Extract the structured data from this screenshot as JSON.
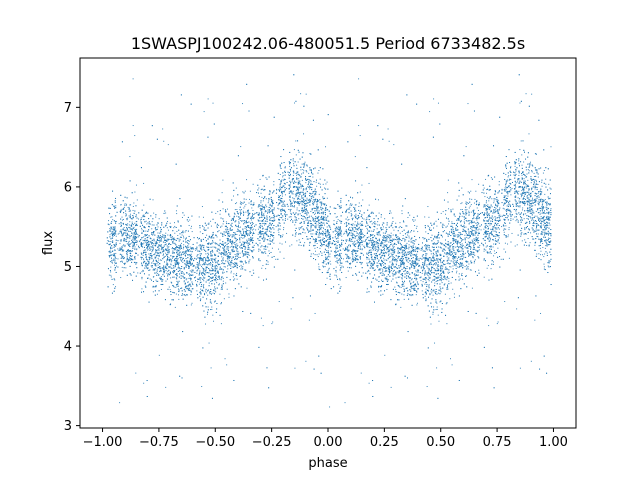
{
  "chart_data": {
    "type": "scatter",
    "title": "1SWASPJ100242.06-480051.5 Period 6733482.5s",
    "xlabel": "phase",
    "ylabel": "flux",
    "xlim": [
      -1.1,
      1.1
    ],
    "ylim": [
      2.97,
      7.62
    ],
    "xticks": [
      -1.0,
      -0.75,
      -0.5,
      -0.25,
      0.0,
      0.25,
      0.5,
      0.75,
      1.0
    ],
    "xtick_labels": [
      "−1.00",
      "−0.75",
      "−0.50",
      "−0.25",
      "0.00",
      "0.25",
      "0.50",
      "0.75",
      "1.00"
    ],
    "yticks": [
      3,
      4,
      5,
      6,
      7
    ],
    "ytick_labels": [
      "3",
      "4",
      "5",
      "6",
      "7"
    ],
    "grid": false,
    "marker_color": "#1f77b4",
    "profile": {
      "phase": [
        0.0,
        0.05,
        0.1,
        0.15,
        0.2,
        0.25,
        0.3,
        0.35,
        0.4,
        0.45,
        0.5,
        0.55,
        0.6,
        0.65,
        0.7,
        0.75,
        0.8,
        0.85,
        0.9,
        0.95,
        1.0
      ],
      "flux_center": [
        5.25,
        5.3,
        5.4,
        5.35,
        5.25,
        5.15,
        5.1,
        5.05,
        5.0,
        5.0,
        5.05,
        5.2,
        5.35,
        5.45,
        5.5,
        5.6,
        5.8,
        5.9,
        5.85,
        5.6,
        5.4
      ],
      "flux_spread": [
        0.45,
        0.4,
        0.4,
        0.4,
        0.4,
        0.4,
        0.4,
        0.42,
        0.45,
        0.5,
        0.5,
        0.45,
        0.4,
        0.4,
        0.4,
        0.4,
        0.45,
        0.45,
        0.45,
        0.45,
        0.45
      ]
    },
    "gaps_phase": [
      0.02,
      0.07,
      0.16,
      0.41,
      0.68,
      0.77,
      0.82
    ],
    "n_points_per_cycle": 6500,
    "notes_outliers": "sparse points down to ~3.3 and up to ~7.4"
  }
}
